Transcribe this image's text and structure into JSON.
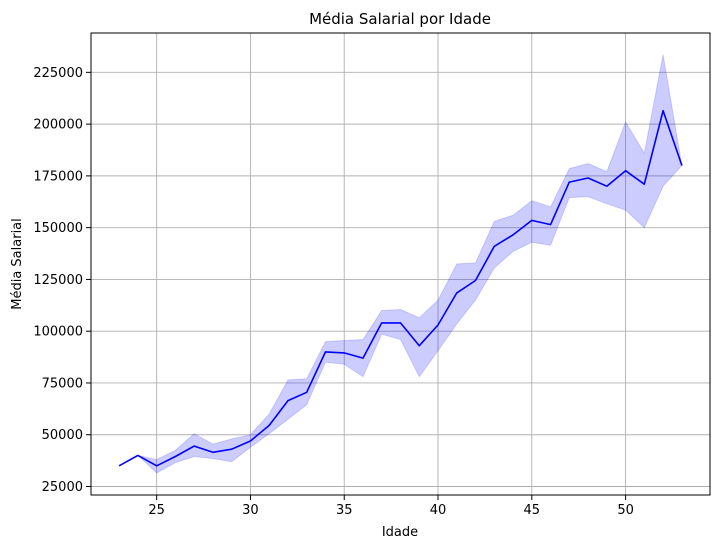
{
  "chart_data": {
    "type": "line",
    "title": "Média Salarial por Idade",
    "xlabel": "Idade",
    "ylabel": "Média Salarial",
    "xlim": [
      21.5,
      54.5
    ],
    "ylim": [
      20900,
      244000
    ],
    "xticks": [
      25,
      30,
      35,
      40,
      45,
      50
    ],
    "yticks": [
      25000,
      50000,
      75000,
      100000,
      125000,
      150000,
      175000,
      200000,
      225000
    ],
    "grid": true,
    "colors": {
      "line": "#0000ff",
      "band": "#0000ff"
    },
    "series": [
      {
        "x": [
          23,
          24,
          25,
          26,
          27,
          28,
          29,
          30,
          31,
          32,
          33,
          34,
          35,
          36,
          37,
          38,
          39,
          40,
          41,
          42,
          43,
          44,
          45,
          46,
          47,
          48,
          49,
          50,
          51,
          52,
          53
        ],
        "y": [
          35000,
          40000,
          35000,
          39500,
          44500,
          41500,
          43000,
          47000,
          54500,
          66500,
          70500,
          90000,
          89500,
          87000,
          104000,
          104000,
          93000,
          103000,
          118500,
          124500,
          141000,
          146500,
          153500,
          151500,
          172000,
          174000,
          170000,
          177500,
          171000,
          206500,
          180000
        ],
        "lower": [
          35000,
          40000,
          31500,
          36500,
          39500,
          38500,
          37000,
          44000,
          50500,
          57500,
          64500,
          85000,
          84000,
          78000,
          98500,
          96000,
          78000,
          90500,
          103500,
          115000,
          130500,
          138500,
          143000,
          141500,
          164500,
          165000,
          161500,
          158500,
          150000,
          170000,
          180000
        ],
        "upper": [
          35000,
          40000,
          38000,
          42500,
          50500,
          45500,
          48000,
          50000,
          60000,
          76500,
          77000,
          95000,
          95500,
          96000,
          110000,
          110500,
          106500,
          115000,
          132500,
          133000,
          153000,
          156000,
          163000,
          160000,
          178500,
          181000,
          177000,
          201000,
          186000,
          233500,
          180000
        ]
      }
    ]
  }
}
